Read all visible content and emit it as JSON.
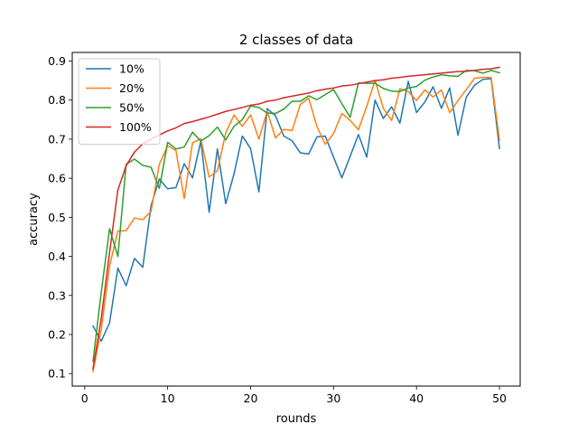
{
  "chart_data": {
    "type": "line",
    "title": "2 classes of data",
    "xlabel": "rounds",
    "ylabel": "accuracy",
    "xlim": [
      -1.5,
      52.5
    ],
    "ylim": [
      0.068,
      0.922
    ],
    "xticks": [
      0,
      10,
      20,
      30,
      40,
      50
    ],
    "yticks": [
      0.1,
      0.2,
      0.3,
      0.4,
      0.5,
      0.6,
      0.7,
      0.8,
      0.9
    ],
    "grid": false,
    "legend_position": "top-left",
    "x": [
      1,
      2,
      3,
      4,
      5,
      6,
      7,
      8,
      9,
      10,
      11,
      12,
      13,
      14,
      15,
      16,
      17,
      18,
      19,
      20,
      21,
      22,
      23,
      24,
      25,
      26,
      27,
      28,
      29,
      30,
      31,
      32,
      33,
      34,
      35,
      36,
      37,
      38,
      39,
      40,
      41,
      42,
      43,
      44,
      45,
      46,
      47,
      48,
      49,
      50
    ],
    "series": [
      {
        "name": "10%",
        "color": "#1f77b4",
        "values": [
          0.222,
          0.183,
          0.23,
          0.37,
          0.325,
          0.395,
          0.372,
          0.53,
          0.598,
          0.573,
          0.576,
          0.637,
          0.601,
          0.695,
          0.513,
          0.675,
          0.535,
          0.611,
          0.708,
          0.676,
          0.565,
          0.778,
          0.76,
          0.708,
          0.696,
          0.665,
          0.662,
          0.706,
          0.708,
          0.654,
          0.601,
          0.656,
          0.712,
          0.654,
          0.8,
          0.753,
          0.783,
          0.741,
          0.848,
          0.768,
          0.795,
          0.834,
          0.779,
          0.831,
          0.71,
          0.808,
          0.838,
          0.853,
          0.855,
          0.676
        ]
      },
      {
        "name": "20%",
        "color": "#ff7f0e",
        "values": [
          0.105,
          0.213,
          0.375,
          0.465,
          0.466,
          0.498,
          0.494,
          0.515,
          0.636,
          0.683,
          0.671,
          0.548,
          0.691,
          0.701,
          0.603,
          0.619,
          0.716,
          0.762,
          0.733,
          0.762,
          0.7,
          0.772,
          0.703,
          0.725,
          0.722,
          0.789,
          0.805,
          0.732,
          0.687,
          0.714,
          0.766,
          0.748,
          0.724,
          0.784,
          0.851,
          0.779,
          0.748,
          0.829,
          0.822,
          0.799,
          0.826,
          0.808,
          0.826,
          0.768,
          0.799,
          0.827,
          0.856,
          0.858,
          0.858,
          0.697
        ]
      },
      {
        "name": "50%",
        "color": "#2ca02c",
        "values": [
          0.131,
          0.309,
          0.471,
          0.4,
          0.636,
          0.649,
          0.633,
          0.628,
          0.574,
          0.692,
          0.675,
          0.68,
          0.718,
          0.695,
          0.709,
          0.731,
          0.698,
          0.733,
          0.75,
          0.785,
          0.781,
          0.767,
          0.766,
          0.777,
          0.797,
          0.797,
          0.811,
          0.801,
          0.814,
          0.827,
          0.791,
          0.756,
          0.844,
          0.843,
          0.843,
          0.83,
          0.823,
          0.822,
          0.831,
          0.835,
          0.851,
          0.859,
          0.865,
          0.862,
          0.861,
          0.876,
          0.875,
          0.869,
          0.876,
          0.87
        ]
      },
      {
        "name": "100%",
        "color": "#d62728",
        "values": [
          0.112,
          0.242,
          0.41,
          0.57,
          0.632,
          0.667,
          0.688,
          0.7,
          0.711,
          0.721,
          0.729,
          0.74,
          0.745,
          0.751,
          0.757,
          0.764,
          0.771,
          0.776,
          0.781,
          0.787,
          0.79,
          0.797,
          0.8,
          0.806,
          0.81,
          0.814,
          0.818,
          0.824,
          0.828,
          0.831,
          0.836,
          0.838,
          0.842,
          0.846,
          0.85,
          0.852,
          0.856,
          0.858,
          0.861,
          0.863,
          0.865,
          0.867,
          0.869,
          0.871,
          0.873,
          0.874,
          0.876,
          0.879,
          0.88,
          0.884
        ]
      }
    ]
  }
}
